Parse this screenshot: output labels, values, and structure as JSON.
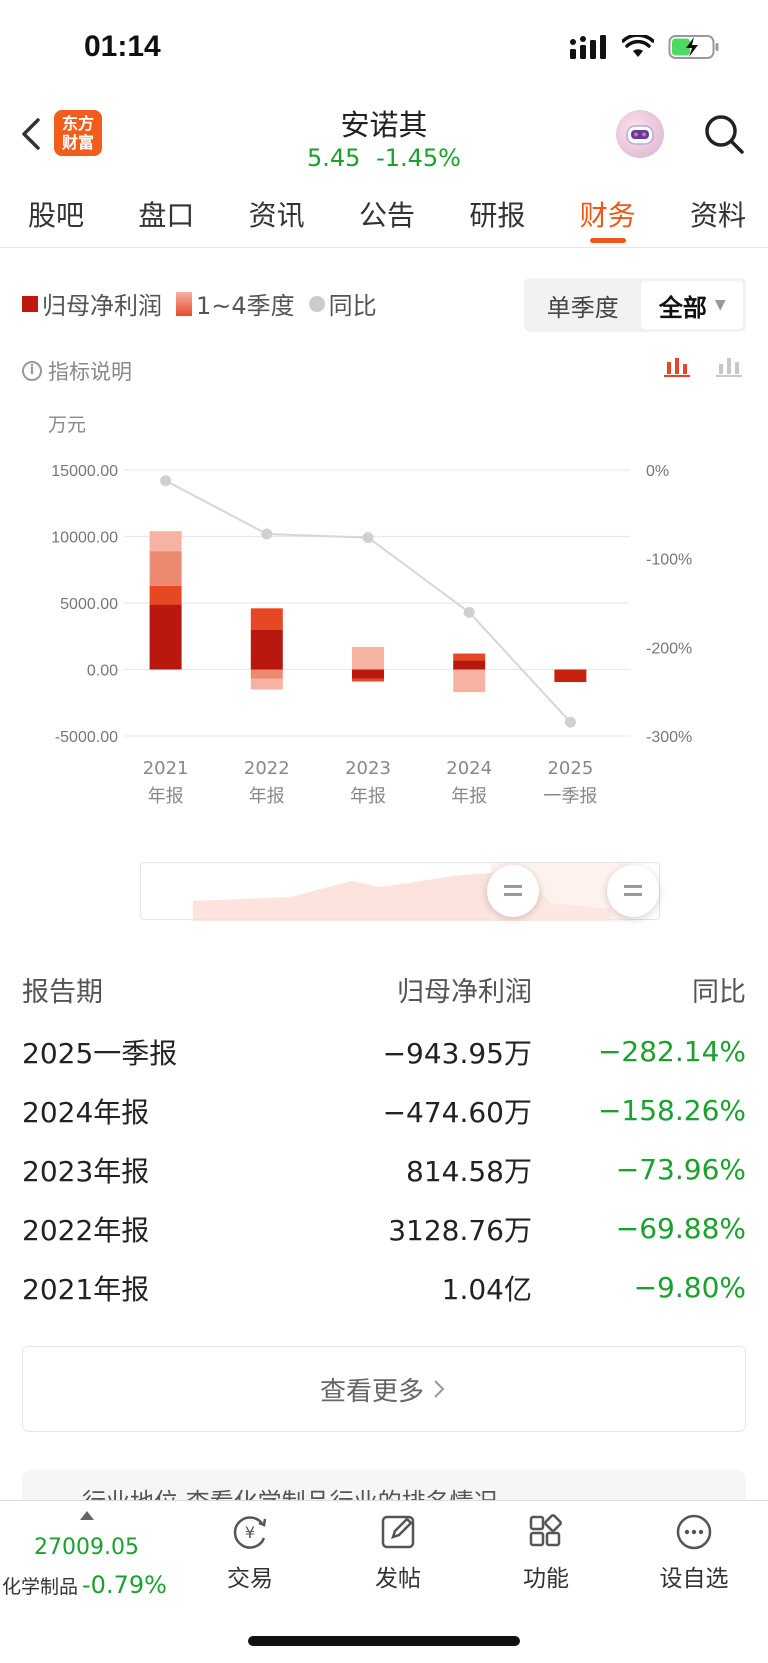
{
  "status": {
    "time": "01:14"
  },
  "header": {
    "logo_line1": "东方",
    "logo_line2": "财富",
    "stock_name": "安诺其",
    "price": "5.45",
    "change_pct": "-1.45%"
  },
  "tabs": [
    "股吧",
    "盘口",
    "资讯",
    "公告",
    "研报",
    "财务",
    "资料"
  ],
  "active_tab": "财务",
  "legend": {
    "net_profit": "归母净利润",
    "quarters": "1~4季度",
    "yoy": "同比"
  },
  "period_switch": {
    "single": "单季度",
    "all": "全部"
  },
  "indicator_label": "指标说明",
  "unit": "万元",
  "chart_data": {
    "type": "bar",
    "categories": [
      "2021\n年报",
      "2022\n年报",
      "2023\n年报",
      "2024\n年报",
      "2025\n一季报"
    ],
    "category_lines": [
      [
        "2021",
        "年报"
      ],
      [
        "2022",
        "年报"
      ],
      [
        "2023",
        "年报"
      ],
      [
        "2024",
        "年报"
      ],
      [
        "2025",
        "一季报"
      ]
    ],
    "y_left_ticks": [
      "15000.00",
      "10000.00",
      "5000.00",
      "0.00",
      "-5000.00"
    ],
    "y_left_range": [
      -5000,
      15000
    ],
    "y_right_ticks": [
      "0%",
      "-100%",
      "-200%",
      "-300%"
    ],
    "y_right_range": [
      -300,
      0
    ],
    "quarterly_segments": [
      [
        {
          "from": 0,
          "to": 4900,
          "color": "#b9180e"
        },
        {
          "from": 4900,
          "to": 6300,
          "color": "#e54822"
        },
        {
          "from": 6300,
          "to": 8900,
          "color": "#ec8a70"
        },
        {
          "from": 8900,
          "to": 10400,
          "color": "#f6b3a4"
        }
      ],
      [
        {
          "from": 0,
          "to": 3000,
          "color": "#b9180e"
        },
        {
          "from": 3000,
          "to": 4600,
          "color": "#e54822"
        },
        {
          "from": 0,
          "to": -700,
          "color": "#ec8a70"
        },
        {
          "from": -700,
          "to": -1500,
          "color": "#f6b3a4"
        }
      ],
      [
        {
          "from": 0,
          "to": -700,
          "color": "#b9180e"
        },
        {
          "from": -700,
          "to": -900,
          "color": "#e54822"
        },
        {
          "from": 0,
          "to": 1700,
          "color": "#f6b3a4"
        }
      ],
      [
        {
          "from": 0,
          "to": 700,
          "color": "#b9180e"
        },
        {
          "from": 700,
          "to": 1200,
          "color": "#e54822"
        },
        {
          "from": 0,
          "to": -1700,
          "color": "#f6b3a4"
        }
      ],
      [
        {
          "from": 0,
          "to": -944,
          "color": "#c8210f"
        }
      ]
    ],
    "series": [
      {
        "name": "归母净利润",
        "values": [
          10400,
          3128.76,
          814.58,
          -474.6,
          -943.95
        ]
      },
      {
        "name": "同比",
        "values": [
          -9.8,
          -69.88,
          -73.96,
          -158.26,
          -282.14
        ]
      }
    ],
    "grid": true
  },
  "table": {
    "headers": [
      "报告期",
      "归母净利润",
      "同比"
    ],
    "rows": [
      [
        "2025一季报",
        "−943.95万",
        "−282.14%"
      ],
      [
        "2024年报",
        "−474.60万",
        "−158.26%"
      ],
      [
        "2023年报",
        "814.58万",
        "−73.96%"
      ],
      [
        "2022年报",
        "3128.76万",
        "−69.88%"
      ],
      [
        "2021年报",
        "1.04亿",
        "−9.80%"
      ]
    ]
  },
  "more_button": "查看更多",
  "peek_text": "行业地位  查看化学制品行业的排名情况",
  "bottom": {
    "index_value": "27009.05",
    "index_name": "化学制品",
    "index_change": "-0.79%",
    "nav": [
      "交易",
      "发帖",
      "功能",
      "设自选"
    ]
  },
  "colors": {
    "accent": "#f0581a",
    "down": "#1aa12e"
  }
}
